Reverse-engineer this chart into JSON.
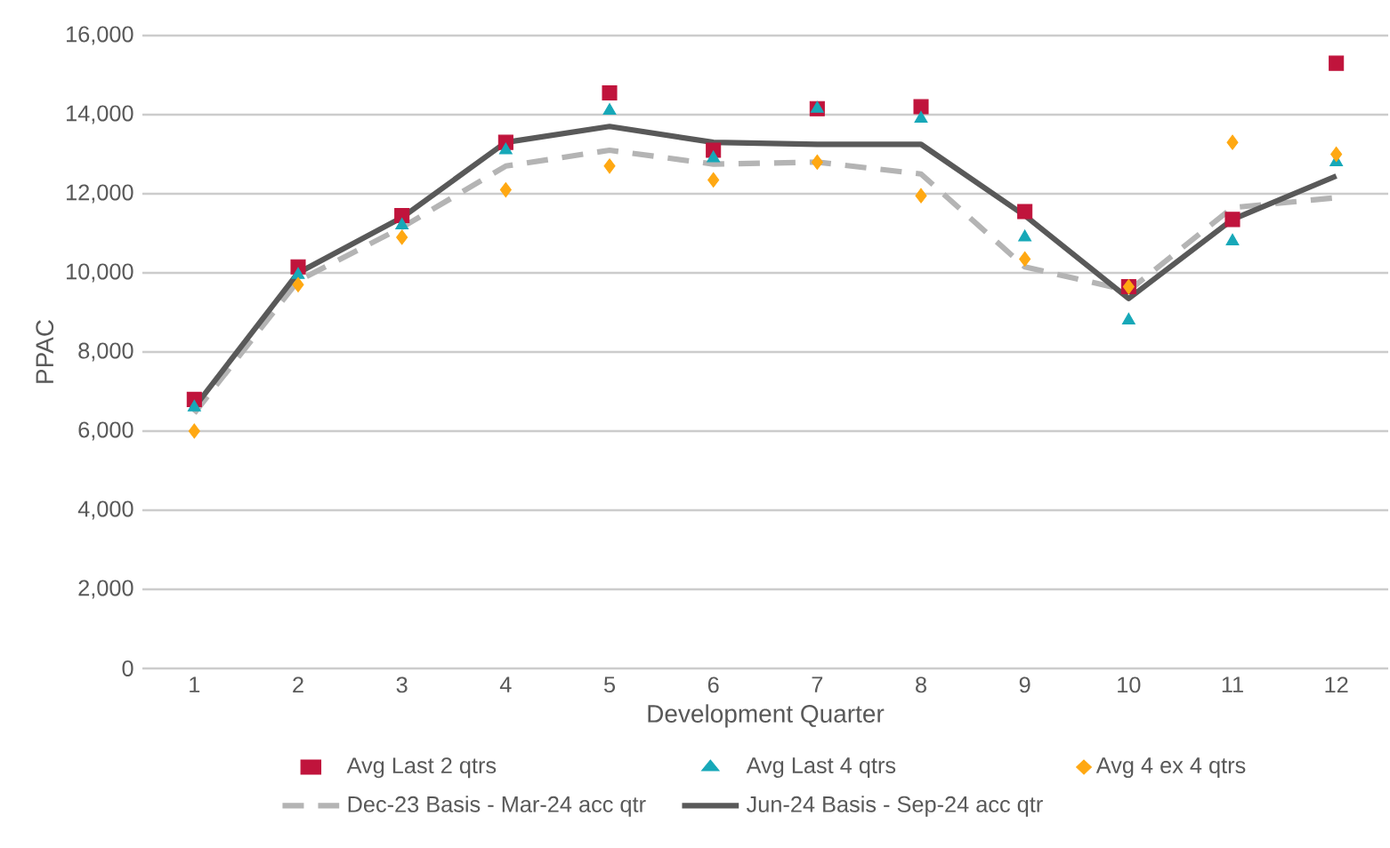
{
  "chart_data": {
    "type": "line",
    "xlabel": "Development Quarter",
    "ylabel": "PPAC",
    "categories": [
      "1",
      "2",
      "3",
      "4",
      "5",
      "6",
      "7",
      "8",
      "9",
      "10",
      "11",
      "12"
    ],
    "ylim": [
      0,
      16000
    ],
    "yticks": [
      0,
      {
        "value": 2000,
        "label": "2,000"
      },
      {
        "value": 4000,
        "label": "4,000"
      },
      {
        "value": 6000,
        "label": "6,000"
      },
      {
        "value": 8000,
        "label": "8,000"
      },
      {
        "value": 10000,
        "label": "10,000"
      },
      {
        "value": 12000,
        "label": "12,000"
      },
      {
        "value": 14000,
        "label": "14,000"
      },
      {
        "value": 16000,
        "label": "16,000"
      }
    ],
    "grid": "y",
    "legend": "bottom",
    "series": [
      {
        "name": "Avg Last 2 qtrs",
        "type": "scatter",
        "marker": "square",
        "color": "#c0143c",
        "values": [
          6800,
          10150,
          11450,
          13300,
          14550,
          13100,
          14150,
          14200,
          11550,
          9650,
          11350,
          15300
        ]
      },
      {
        "name": "Avg Last 4 qtrs",
        "type": "scatter",
        "marker": "triangle",
        "color": "#17a8b8",
        "values": [
          6600,
          9950,
          11200,
          13100,
          14100,
          12900,
          14150,
          13900,
          10900,
          8800,
          10800,
          12800
        ]
      },
      {
        "name": "Avg 4 ex 4 qtrs",
        "type": "scatter",
        "marker": "diamond",
        "color": "#ffa812",
        "values": [
          6000,
          9700,
          10900,
          12100,
          12700,
          12350,
          12800,
          11950,
          10350,
          9650,
          13300,
          13000
        ]
      },
      {
        "name": "Dec-23 Basis - Mar-24 acc qtr",
        "type": "line",
        "line_style": "dashed",
        "color": "#b4b4b4",
        "values": [
          6450,
          9800,
          11150,
          12700,
          13100,
          12750,
          12800,
          12500,
          10150,
          9550,
          11650,
          11900
        ]
      },
      {
        "name": "Jun-24 Basis - Sep-24 acc qtr",
        "type": "line",
        "line_style": "solid",
        "color": "#595959",
        "values": [
          6600,
          10000,
          11400,
          13300,
          13700,
          13300,
          13250,
          13250,
          11450,
          9350,
          11350,
          12450
        ]
      }
    ]
  }
}
